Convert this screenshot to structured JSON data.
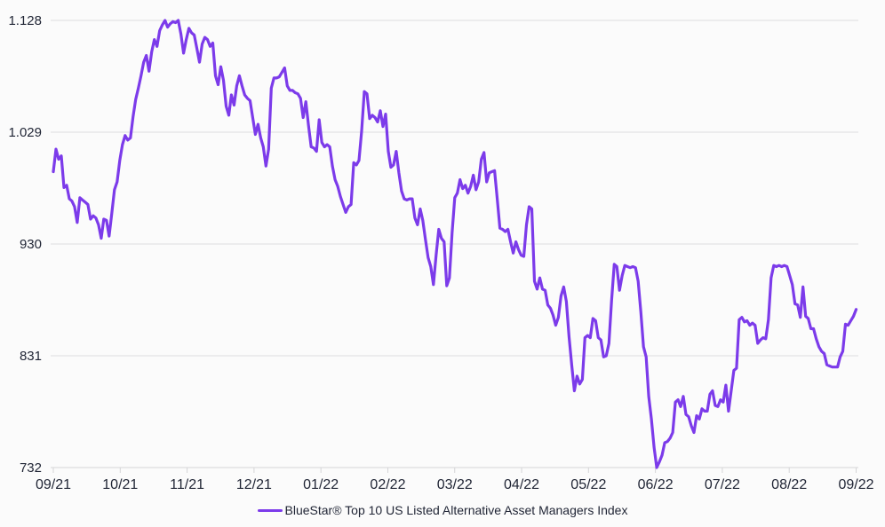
{
  "colors": {
    "line": "#7c3bea",
    "text": "#1f2434",
    "gridline": "#dededf",
    "axis": "#d5d5d7",
    "background": "#fbfbfb"
  },
  "chart_data": {
    "type": "line",
    "title": "",
    "legend": [
      "BlueStar® Top 10 US Listed Alternative Asset Managers Index"
    ],
    "legend_position": "bottom-center",
    "grid": "horizontal-only",
    "x_tick_labels": [
      "09/21",
      "10/21",
      "11/21",
      "12/21",
      "01/22",
      "02/22",
      "03/22",
      "04/22",
      "05/22",
      "06/22",
      "07/22",
      "08/22",
      "09/22"
    ],
    "y_tick_labels": [
      "732",
      "831",
      "930",
      "1.029",
      "1.128"
    ],
    "ylim": [
      732,
      1128
    ],
    "x_range": {
      "start": "09/21",
      "end": "09/22",
      "sampling": "evenly spaced over 12 months"
    },
    "series": [
      {
        "name": "BlueStar® Top 10 US Listed Alternative Asset Managers Index",
        "color": "#7c3bea",
        "values": [
          994,
          1014,
          1005,
          1008,
          980,
          982,
          970,
          968,
          963,
          949,
          971,
          969,
          967,
          965,
          952,
          955,
          953,
          947,
          935,
          952,
          951,
          937,
          957,
          978,
          985,
          1004,
          1018,
          1026,
          1022,
          1024,
          1043,
          1058,
          1068,
          1079,
          1091,
          1097,
          1083,
          1100,
          1111,
          1105,
          1119,
          1124,
          1128,
          1122,
          1125,
          1127,
          1126,
          1128,
          1116,
          1099,
          1111,
          1121,
          1117,
          1115,
          1103,
          1091,
          1107,
          1113,
          1111,
          1105,
          1108,
          1079,
          1071,
          1087,
          1075,
          1052,
          1044,
          1062,
          1053,
          1070,
          1079,
          1070,
          1062,
          1059,
          1057,
          1042,
          1027,
          1036,
          1024,
          1016,
          999,
          1014,
          1068,
          1077,
          1077,
          1078,
          1082,
          1086,
          1070,
          1066,
          1066,
          1064,
          1063,
          1059,
          1042,
          1056,
          1035,
          1016,
          1015,
          1012,
          1040,
          1020,
          1016,
          1018,
          1016,
          999,
          987,
          981,
          972,
          965,
          958,
          963,
          965,
          1002,
          1000,
          1004,
          1030,
          1065,
          1063,
          1041,
          1044,
          1042,
          1038,
          1048,
          1034,
          1045,
          1012,
          998,
          1000,
          1012,
          993,
          977,
          970,
          969,
          970,
          970,
          953,
          947,
          961,
          951,
          934,
          918,
          910,
          894,
          920,
          943,
          935,
          932,
          893,
          900,
          940,
          971,
          975,
          987,
          979,
          982,
          975,
          981,
          991,
          978,
          985,
          1005,
          1011,
          985,
          993,
          994,
          995,
          970,
          944,
          943,
          941,
          943,
          932,
          922,
          932,
          925,
          920,
          919,
          947,
          963,
          961,
          897,
          890,
          900,
          890,
          889,
          876,
          873,
          867,
          858,
          865,
          884,
          892,
          879,
          848,
          823,
          800,
          813,
          806,
          810,
          847,
          849,
          847,
          864,
          862,
          847,
          845,
          830,
          831,
          842,
          880,
          912,
          910,
          889,
          902,
          911,
          910,
          909,
          910,
          909,
          897,
          870,
          839,
          830,
          795,
          775,
          750,
          732,
          737,
          743,
          754,
          755,
          758,
          763,
          790,
          792,
          786,
          795,
          779,
          777,
          769,
          763,
          778,
          775,
          784,
          782,
          782,
          797,
          800,
          787,
          786,
          792,
          790,
          805,
          782,
          800,
          818,
          820,
          863,
          865,
          861,
          862,
          858,
          860,
          858,
          842,
          845,
          847,
          846,
          863,
          900,
          911,
          910,
          911,
          910,
          911,
          910,
          902,
          894,
          877,
          876,
          865,
          892,
          866,
          864,
          855,
          855,
          846,
          839,
          835,
          833,
          823,
          822,
          821,
          821,
          821,
          830,
          835,
          859,
          858,
          862,
          866,
          872
        ]
      }
    ]
  }
}
